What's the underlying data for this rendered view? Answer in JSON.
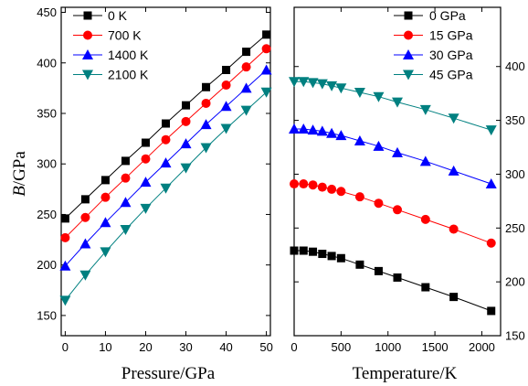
{
  "chart_data": [
    {
      "type": "line",
      "title": "",
      "xlabel": "Pressure/GPa",
      "ylabel_italic": "B",
      "ylabel_rest": "/GPa",
      "xlim": [
        -1,
        51
      ],
      "ylim": [
        130,
        455
      ],
      "xticks": [
        0,
        10,
        20,
        30,
        40,
        50
      ],
      "yticks": [
        150,
        200,
        250,
        300,
        350,
        400,
        450
      ],
      "yaxis_side": "left",
      "grid": false,
      "legend_position": "top-left",
      "x": [
        0,
        5,
        10,
        15,
        20,
        25,
        30,
        35,
        40,
        45,
        50
      ],
      "series": [
        {
          "name": "0 K",
          "color": "#000000",
          "marker": "square",
          "values": [
            246,
            265,
            284,
            303,
            321,
            340,
            358,
            376,
            393,
            411,
            428
          ]
        },
        {
          "name": "700 K",
          "color": "#ff0000",
          "marker": "circle",
          "values": [
            227,
            247,
            267,
            286,
            305,
            324,
            342,
            360,
            378,
            396,
            414
          ]
        },
        {
          "name": "1400 K",
          "color": "#0000ff",
          "marker": "triangle-up",
          "values": [
            199,
            221,
            242,
            262,
            282,
            301,
            320,
            339,
            357,
            375,
            393
          ]
        },
        {
          "name": "2100 K",
          "color": "#008080",
          "marker": "triangle-down",
          "values": [
            165,
            190,
            213,
            235,
            256,
            276,
            296,
            316,
            335,
            353,
            371
          ]
        }
      ]
    },
    {
      "type": "line",
      "title": "",
      "xlabel": "Temperature/K",
      "ylabel": "",
      "xlim": [
        0,
        2200
      ],
      "ylim": [
        150,
        455
      ],
      "xticks": [
        0,
        500,
        1000,
        1500,
        2000
      ],
      "yticks": [
        150,
        200,
        250,
        300,
        350,
        400
      ],
      "yaxis_side": "right",
      "grid": false,
      "legend_position": "top-right",
      "x": [
        0,
        100,
        200,
        300,
        400,
        500,
        700,
        900,
        1100,
        1400,
        1700,
        2100
      ],
      "series": [
        {
          "name": "0 GPa",
          "color": "#000000",
          "marker": "square",
          "values": [
            229,
            229,
            228,
            226,
            224,
            222,
            216,
            210,
            204,
            195,
            186,
            173
          ]
        },
        {
          "name": "15 GPa",
          "color": "#ff0000",
          "marker": "circle",
          "values": [
            291,
            291,
            290,
            288,
            286,
            284,
            279,
            273,
            267,
            258,
            249,
            236
          ]
        },
        {
          "name": "30 GPa",
          "color": "#0000ff",
          "marker": "triangle-up",
          "values": [
            342,
            342,
            341,
            340,
            338,
            336,
            331,
            326,
            320,
            312,
            303,
            291
          ]
        },
        {
          "name": "45 GPa",
          "color": "#008080",
          "marker": "triangle-down",
          "values": [
            386,
            386,
            385,
            384,
            382,
            380,
            376,
            372,
            367,
            360,
            352,
            341
          ]
        }
      ]
    }
  ]
}
